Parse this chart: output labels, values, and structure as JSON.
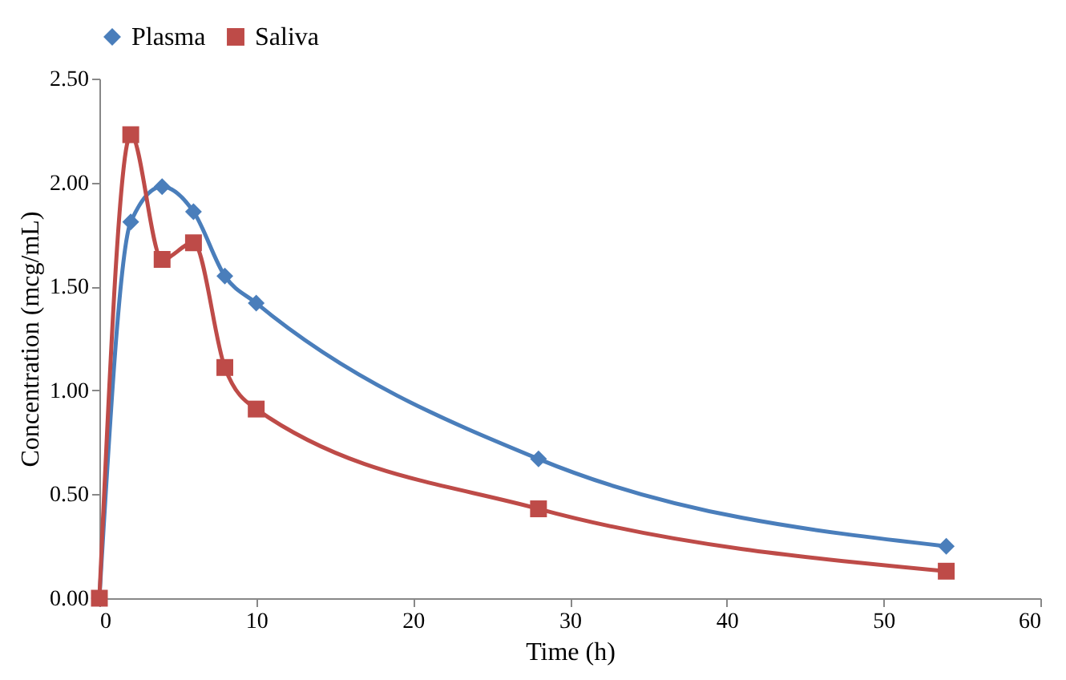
{
  "chart_data": {
    "type": "line",
    "xlabel": "Time (h)",
    "ylabel": "Concentration (mcg/mL)",
    "x": [
      0,
      2,
      4,
      6,
      8,
      10,
      28,
      54
    ],
    "series": [
      {
        "name": "Plasma",
        "color": "#4a7ebb",
        "marker": "diamond",
        "values": [
          0,
          1.81,
          1.98,
          1.86,
          1.55,
          1.42,
          0.67,
          0.25
        ]
      },
      {
        "name": "Saliva",
        "color": "#be4b48",
        "marker": "square",
        "values": [
          0,
          2.23,
          1.63,
          1.71,
          1.11,
          0.91,
          0.43,
          0.13
        ]
      }
    ],
    "xlim": [
      0,
      60
    ],
    "xticks": [
      0,
      10,
      20,
      30,
      40,
      50,
      60
    ],
    "ylim": [
      0,
      2.5
    ],
    "yticks": [
      {
        "value": 0,
        "label": "0.00"
      },
      {
        "value": 0.5,
        "label": "0.50"
      },
      {
        "value": 1,
        "label": "1.00"
      },
      {
        "value": 1.5,
        "label": "1.50"
      },
      {
        "value": 2,
        "label": "2.00"
      },
      {
        "value": 2.5,
        "label": "2.50"
      }
    ],
    "grid": false,
    "legend": "top",
    "line_style": "solid"
  }
}
